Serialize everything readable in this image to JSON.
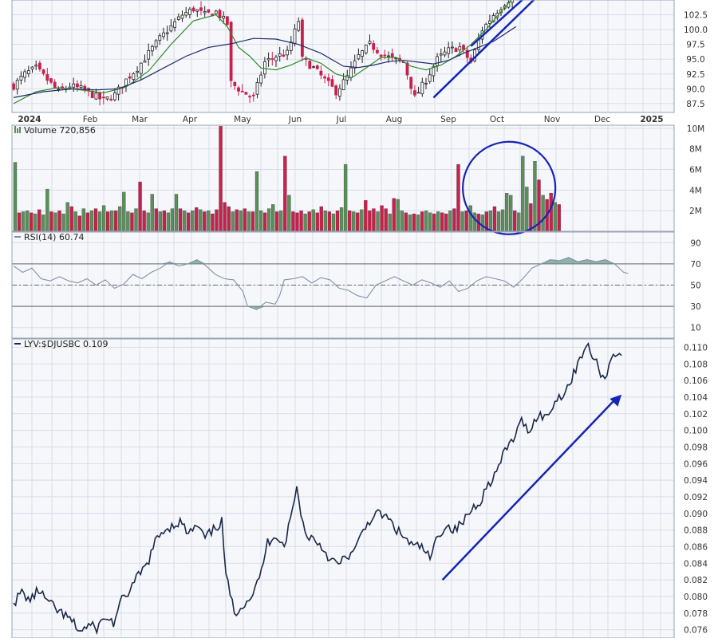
{
  "colors": {
    "up": "#5a8f5a",
    "down": "#c8204c",
    "sma_short": "#2e8b2e",
    "sma_long": "#1f2a6b",
    "rsi": "#8490a8",
    "rsi_fill": "#6a9a90",
    "ratio": "#1a2848",
    "annotation": "#1525b5",
    "grid": "#d9dde6",
    "axis_text": "#333333"
  },
  "chart_data": [
    {
      "type": "candlestick",
      "name": "price",
      "y_ticks": [
        "102.5",
        "100.0",
        "97.5",
        "95.0",
        "92.5",
        "90.0",
        "87.5"
      ],
      "ylim": [
        86,
        105
      ],
      "x_labels": [
        "2024",
        "Feb",
        "Mar",
        "Apr",
        "May",
        "Jun",
        "Jul",
        "Aug",
        "Sep",
        "Oct",
        "Nov",
        "Dec",
        "2025"
      ],
      "close_path": [
        [
          0,
          90.5
        ],
        [
          3,
          92.5
        ],
        [
          6,
          93.5
        ],
        [
          9,
          91.5
        ],
        [
          12,
          89.5
        ],
        [
          15,
          90.5
        ],
        [
          18,
          90.0
        ],
        [
          21,
          89.0
        ],
        [
          24,
          88.0
        ],
        [
          27,
          89.0
        ],
        [
          30,
          91.5
        ],
        [
          33,
          93.5
        ],
        [
          36,
          96.0
        ],
        [
          39,
          98.5
        ],
        [
          42,
          100.5
        ],
        [
          45,
          102.5
        ],
        [
          48,
          103.5
        ],
        [
          51,
          102.5
        ],
        [
          54,
          103.0
        ],
        [
          57,
          101.0
        ],
        [
          58,
          91.0
        ],
        [
          61,
          89.5
        ],
        [
          64,
          88.5
        ],
        [
          67,
          94.5
        ],
        [
          70,
          95.5
        ],
        [
          73,
          96.0
        ],
        [
          76,
          101.5
        ],
        [
          77,
          95.0
        ],
        [
          80,
          93.5
        ],
        [
          83,
          91.5
        ],
        [
          86,
          89.5
        ],
        [
          89,
          92.0
        ],
        [
          92,
          95.5
        ],
        [
          95,
          97.5
        ],
        [
          98,
          96.0
        ],
        [
          101,
          95.0
        ],
        [
          104,
          94.5
        ],
        [
          107,
          88.5
        ],
        [
          110,
          91.5
        ],
        [
          113,
          95.0
        ],
        [
          116,
          96.5
        ],
        [
          119,
          97.0
        ],
        [
          122,
          94.5
        ],
        [
          125,
          100.0
        ],
        [
          128,
          102.5
        ],
        [
          131,
          104.5
        ],
        [
          134,
          106.0
        ]
      ],
      "sma_short_path": [
        [
          0,
          87.5
        ],
        [
          6,
          89.5
        ],
        [
          12,
          90.2
        ],
        [
          18,
          89.8
        ],
        [
          24,
          89.3
        ],
        [
          30,
          90.3
        ],
        [
          36,
          93.0
        ],
        [
          42,
          97.5
        ],
        [
          48,
          101.5
        ],
        [
          54,
          102.5
        ],
        [
          57,
          100.5
        ],
        [
          60,
          97.0
        ],
        [
          63,
          95.5
        ],
        [
          66,
          93.5
        ],
        [
          70,
          93.2
        ],
        [
          74,
          94.0
        ],
        [
          78,
          95.2
        ],
        [
          82,
          94.3
        ],
        [
          86,
          92.5
        ],
        [
          90,
          91.8
        ],
        [
          94,
          93.5
        ],
        [
          98,
          95.3
        ],
        [
          102,
          95.3
        ],
        [
          106,
          93.8
        ],
        [
          110,
          93.2
        ],
        [
          114,
          94.0
        ],
        [
          118,
          95.5
        ],
        [
          122,
          97.5
        ],
        [
          126,
          100.0
        ],
        [
          130,
          103.0
        ],
        [
          134,
          106.0
        ]
      ],
      "sma_long_path": [
        [
          0,
          88.5
        ],
        [
          8,
          89.5
        ],
        [
          16,
          90.0
        ],
        [
          22,
          89.8
        ],
        [
          28,
          90.0
        ],
        [
          34,
          91.5
        ],
        [
          40,
          93.5
        ],
        [
          46,
          95.5
        ],
        [
          52,
          97.0
        ],
        [
          58,
          97.6
        ],
        [
          64,
          98.5
        ],
        [
          70,
          98.4
        ],
        [
          76,
          97.5
        ],
        [
          82,
          96.0
        ],
        [
          88,
          93.8
        ],
        [
          92,
          93.6
        ],
        [
          96,
          94.0
        ],
        [
          100,
          94.6
        ],
        [
          104,
          94.8
        ],
        [
          108,
          94.5
        ],
        [
          112,
          94.2
        ],
        [
          116,
          94.8
        ],
        [
          120,
          96.0
        ],
        [
          124,
          97.0
        ],
        [
          128,
          98.0
        ],
        [
          134,
          100.5
        ]
      ],
      "annotation": {
        "type": "arrow-line",
        "from": [
          112,
          88.5
        ],
        "to": [
          134,
          106.0
        ]
      }
    },
    {
      "type": "bar",
      "name": "volume",
      "legend": "Volume 720,856",
      "y_ticks": [
        "10M",
        "8M",
        "6M",
        "4M",
        "2M"
      ],
      "ylim": [
        0,
        10.3
      ],
      "values": [
        6.7,
        1.8,
        1.9,
        2.0,
        1.8,
        1.7,
        2.1,
        1.6,
        4.1,
        1.9,
        1.8,
        2.0,
        1.7,
        2.8,
        2.4,
        1.9,
        1.5,
        2.2,
        1.8,
        2.0,
        2.2,
        1.9,
        2.5,
        1.9,
        2.0,
        2.0,
        2.4,
        3.8,
        1.9,
        1.8,
        2.2,
        4.8,
        2.0,
        1.8,
        3.6,
        2.2,
        1.9,
        2.0,
        1.8,
        2.2,
        3.6,
        2.2,
        2.0,
        1.8,
        2.0,
        2.3,
        2.1,
        1.9,
        2.0,
        1.7,
        2.1,
        10.2,
        2.8,
        2.4,
        1.9,
        2.1,
        2.0,
        2.2,
        1.9,
        1.9,
        5.8,
        2.0,
        1.8,
        2.2,
        2.6,
        1.9,
        2.0,
        7.3,
        3.5,
        1.9,
        1.8,
        2.0,
        1.7,
        1.9,
        2.1,
        1.8,
        2.4,
        2.0,
        1.9,
        1.7,
        2.0,
        2.3,
        6.5,
        2.0,
        1.9,
        1.8,
        2.1,
        3.0,
        2.0,
        2.2,
        1.9,
        2.5,
        2.2,
        1.7,
        3.2,
        3.1,
        2.0,
        1.8,
        1.6,
        1.7,
        1.6,
        1.9,
        2.0,
        1.8,
        1.7,
        1.9,
        1.8,
        1.7,
        2.0,
        2.2,
        6.5,
        1.9,
        2.0,
        2.5,
        1.8,
        1.7,
        1.6,
        1.9,
        2.0,
        2.4,
        1.9,
        2.1,
        3.7,
        3.5,
        2.0,
        1.8,
        7.3,
        4.3,
        2.7,
        6.8,
        5.0,
        3.5,
        3.1,
        3.7,
        2.8,
        2.6
      ],
      "up": [
        1,
        0,
        1,
        1,
        0,
        1,
        0,
        1,
        1,
        0,
        1,
        0,
        1,
        1,
        0,
        1,
        0,
        1,
        0,
        1,
        0,
        1,
        1,
        0,
        1,
        0,
        1,
        1,
        1,
        0,
        1,
        0,
        0,
        1,
        1,
        0,
        1,
        0,
        1,
        1,
        1,
        0,
        1,
        0,
        1,
        0,
        1,
        0,
        1,
        0,
        0,
        0,
        0,
        0,
        1,
        0,
        1,
        0,
        1,
        0,
        1,
        1,
        0,
        1,
        1,
        0,
        1,
        0,
        1,
        0,
        0,
        0,
        1,
        0,
        1,
        0,
        0,
        1,
        0,
        1,
        0,
        1,
        1,
        0,
        1,
        0,
        1,
        0,
        0,
        0,
        1,
        0,
        0,
        1,
        0,
        1,
        1,
        0,
        1,
        0,
        1,
        0,
        1,
        1,
        0,
        1,
        0,
        0,
        1,
        0,
        0,
        1,
        0,
        1,
        1,
        0,
        1,
        0,
        1,
        0,
        1,
        1,
        1,
        1,
        0,
        1,
        1,
        1,
        0,
        1,
        0,
        1,
        0,
        0,
        1,
        0,
        1
      ],
      "annotation": {
        "type": "circle",
        "cx": 123,
        "cy": 4.2
      }
    },
    {
      "type": "line",
      "name": "rsi",
      "legend": "RSI(14) 60.74",
      "y_ticks": [
        "90",
        "70",
        "50",
        "30",
        "10"
      ],
      "ylim": [
        0,
        100
      ],
      "reference_lines": [
        70,
        50,
        30
      ],
      "path": [
        [
          0,
          68
        ],
        [
          2,
          62
        ],
        [
          4,
          66
        ],
        [
          6,
          56
        ],
        [
          8,
          54
        ],
        [
          10,
          58
        ],
        [
          12,
          54
        ],
        [
          14,
          52
        ],
        [
          16,
          56
        ],
        [
          18,
          50
        ],
        [
          20,
          55
        ],
        [
          22,
          47
        ],
        [
          24,
          51
        ],
        [
          26,
          60
        ],
        [
          28,
          56
        ],
        [
          30,
          62
        ],
        [
          32,
          66
        ],
        [
          34,
          72
        ],
        [
          36,
          68
        ],
        [
          38,
          70
        ],
        [
          40,
          74
        ],
        [
          42,
          68
        ],
        [
          44,
          60
        ],
        [
          46,
          56
        ],
        [
          48,
          55
        ],
        [
          50,
          44
        ],
        [
          51,
          30
        ],
        [
          53,
          27
        ],
        [
          55,
          34
        ],
        [
          57,
          32
        ],
        [
          58,
          40
        ],
        [
          59,
          55
        ],
        [
          61,
          56
        ],
        [
          63,
          58
        ],
        [
          65,
          52
        ],
        [
          67,
          57
        ],
        [
          69,
          55
        ],
        [
          71,
          47
        ],
        [
          73,
          45
        ],
        [
          75,
          40
        ],
        [
          77,
          38
        ],
        [
          79,
          50
        ],
        [
          81,
          54
        ],
        [
          83,
          58
        ],
        [
          85,
          54
        ],
        [
          87,
          50
        ],
        [
          89,
          55
        ],
        [
          91,
          52
        ],
        [
          93,
          48
        ],
        [
          95,
          54
        ],
        [
          97,
          44
        ],
        [
          99,
          47
        ],
        [
          101,
          54
        ],
        [
          103,
          58
        ],
        [
          105,
          56
        ],
        [
          107,
          54
        ],
        [
          109,
          48
        ],
        [
          111,
          56
        ],
        [
          113,
          66
        ],
        [
          115,
          70
        ],
        [
          117,
          74
        ],
        [
          119,
          73
        ],
        [
          121,
          76
        ],
        [
          123,
          72
        ],
        [
          125,
          74
        ],
        [
          127,
          72
        ],
        [
          129,
          74
        ],
        [
          131,
          70
        ],
        [
          133,
          62
        ],
        [
          134,
          61
        ]
      ]
    },
    {
      "type": "line",
      "name": "relative-strength",
      "legend": "LYV:$DJUSBC 0.109",
      "y_ticks": [
        "0.110",
        "0.108",
        "0.106",
        "0.104",
        "0.102",
        "0.100",
        "0.098",
        "0.096",
        "0.094",
        "0.092",
        "0.090",
        "0.088",
        "0.086",
        "0.084",
        "0.082",
        "0.080",
        "0.078",
        "0.076"
      ],
      "ylim": [
        0.075,
        0.111
      ],
      "path": [
        [
          0,
          0.0792
        ],
        [
          2,
          0.0805
        ],
        [
          4,
          0.0795
        ],
        [
          6,
          0.0808
        ],
        [
          8,
          0.0795
        ],
        [
          10,
          0.0785
        ],
        [
          12,
          0.0778
        ],
        [
          14,
          0.077
        ],
        [
          16,
          0.0758
        ],
        [
          18,
          0.0765
        ],
        [
          20,
          0.0762
        ],
        [
          22,
          0.0775
        ],
        [
          24,
          0.0768
        ],
        [
          26,
          0.0795
        ],
        [
          28,
          0.0808
        ],
        [
          30,
          0.0825
        ],
        [
          32,
          0.0838
        ],
        [
          34,
          0.0865
        ],
        [
          36,
          0.088
        ],
        [
          38,
          0.0885
        ],
        [
          40,
          0.089
        ],
        [
          42,
          0.0875
        ],
        [
          44,
          0.0885
        ],
        [
          46,
          0.087
        ],
        [
          48,
          0.088
        ],
        [
          50,
          0.089
        ],
        [
          51,
          0.0825
        ],
        [
          53,
          0.078
        ],
        [
          55,
          0.079
        ],
        [
          57,
          0.08
        ],
        [
          59,
          0.082
        ],
        [
          61,
          0.0865
        ],
        [
          63,
          0.0875
        ],
        [
          65,
          0.086
        ],
        [
          67,
          0.0905
        ],
        [
          68,
          0.093
        ],
        [
          70,
          0.0875
        ],
        [
          72,
          0.087
        ],
        [
          74,
          0.086
        ],
        [
          76,
          0.0845
        ],
        [
          78,
          0.0838
        ],
        [
          80,
          0.0848
        ],
        [
          82,
          0.0855
        ],
        [
          84,
          0.088
        ],
        [
          86,
          0.0895
        ],
        [
          88,
          0.09
        ],
        [
          90,
          0.0893
        ],
        [
          92,
          0.088
        ],
        [
          94,
          0.087
        ],
        [
          96,
          0.086
        ],
        [
          98,
          0.086
        ],
        [
          100,
          0.0845
        ],
        [
          102,
          0.0875
        ],
        [
          104,
          0.0885
        ],
        [
          106,
          0.088
        ],
        [
          108,
          0.089
        ],
        [
          110,
          0.0905
        ],
        [
          112,
          0.0915
        ],
        [
          114,
          0.0935
        ],
        [
          116,
          0.095
        ],
        [
          118,
          0.0975
        ],
        [
          120,
          0.099
        ],
        [
          122,
          0.101
        ],
        [
          124,
          0.1
        ],
        [
          126,
          0.102
        ],
        [
          128,
          0.1015
        ],
        [
          130,
          0.1035
        ],
        [
          132,
          0.1045
        ],
        [
          134,
          0.106
        ],
        [
          136,
          0.109
        ],
        [
          138,
          0.11
        ],
        [
          140,
          0.108
        ],
        [
          142,
          0.106
        ],
        [
          144,
          0.1095
        ],
        [
          146,
          0.109
        ]
      ],
      "annotation": {
        "type": "arrow",
        "from": [
          103,
          0.082
        ],
        "to": [
          146,
          0.1043
        ]
      }
    }
  ]
}
